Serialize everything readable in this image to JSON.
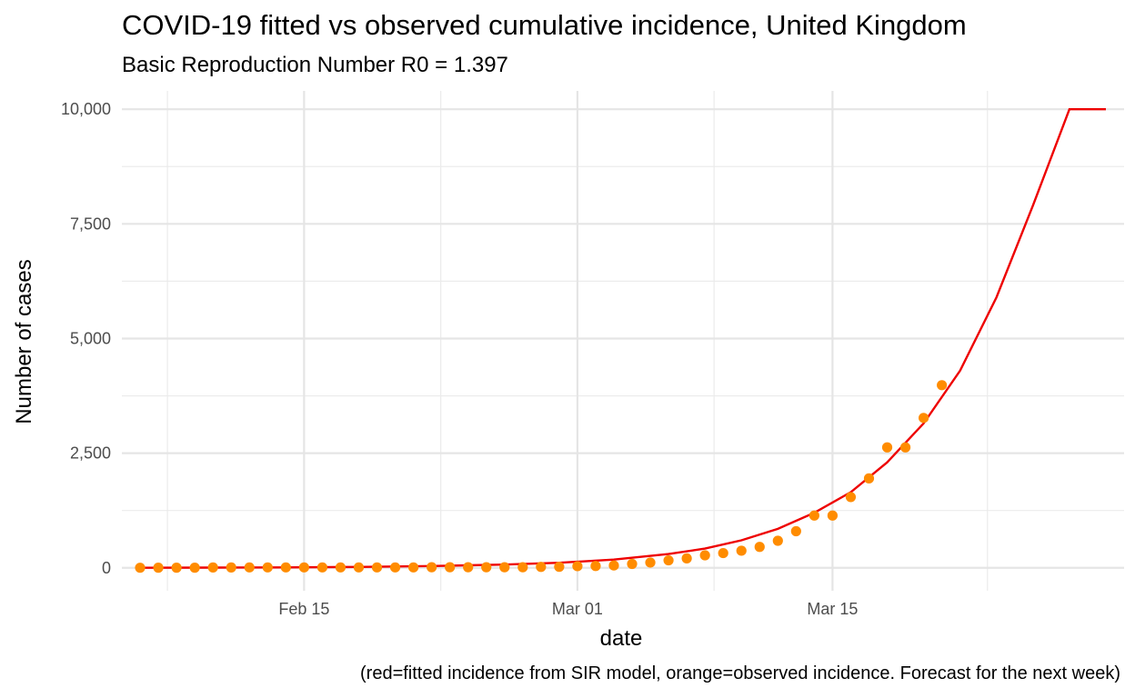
{
  "chart_data": {
    "type": "line",
    "title": "COVID-19 fitted vs observed cumulative incidence, United Kingdom",
    "subtitle": "Basic Reproduction Number R0 = 1.397",
    "xlabel": "date",
    "ylabel": "Number of cases",
    "caption": "(red=fitted incidence from SIR model, orange=observed incidence. Forecast for the next week)",
    "x_tick_labels": [
      "Feb 15",
      "Mar 01",
      "Mar 15"
    ],
    "x_tick_dates": [
      "2020-02-15",
      "2020-03-01",
      "2020-03-15"
    ],
    "y_tick_labels": [
      "0",
      "2,500",
      "5,000",
      "7,500",
      "10,000"
    ],
    "y_tick_values": [
      0,
      2500,
      5000,
      7500,
      10000
    ],
    "xlim": [
      "2020-02-05",
      "2020-03-31"
    ],
    "ylim": [
      -500,
      10400
    ],
    "grid": true,
    "series": [
      {
        "kind": "line",
        "color": "#ee0000",
        "x": [
          "2020-02-06",
          "2020-02-10",
          "2020-02-14",
          "2020-02-18",
          "2020-02-22",
          "2020-02-26",
          "2020-02-29",
          "2020-03-03",
          "2020-03-06",
          "2020-03-08",
          "2020-03-10",
          "2020-03-12",
          "2020-03-14",
          "2020-03-16",
          "2020-03-18",
          "2020-03-20",
          "2020-03-22",
          "2020-03-24",
          "2020-03-26",
          "2020-03-28",
          "2020-03-30"
        ],
        "values": [
          2,
          5,
          10,
          20,
          40,
          70,
          110,
          180,
          300,
          420,
          600,
          850,
          1200,
          1650,
          2300,
          3150,
          4300,
          5900,
          7900,
          10000,
          10000
        ]
      },
      {
        "kind": "points",
        "color": "#ff8c00",
        "x": [
          "2020-02-06",
          "2020-02-07",
          "2020-02-08",
          "2020-02-09",
          "2020-02-10",
          "2020-02-11",
          "2020-02-12",
          "2020-02-13",
          "2020-02-14",
          "2020-02-15",
          "2020-02-16",
          "2020-02-17",
          "2020-02-18",
          "2020-02-19",
          "2020-02-20",
          "2020-02-21",
          "2020-02-22",
          "2020-02-23",
          "2020-02-24",
          "2020-02-25",
          "2020-02-26",
          "2020-02-27",
          "2020-02-28",
          "2020-02-29",
          "2020-03-01",
          "2020-03-02",
          "2020-03-03",
          "2020-03-04",
          "2020-03-05",
          "2020-03-06",
          "2020-03-07",
          "2020-03-08",
          "2020-03-09",
          "2020-03-10",
          "2020-03-11",
          "2020-03-12",
          "2020-03-13",
          "2020-03-14",
          "2020-03-15",
          "2020-03-16",
          "2020-03-17",
          "2020-03-18",
          "2020-03-19",
          "2020-03-20",
          "2020-03-21"
        ],
        "values": [
          2,
          3,
          3,
          3,
          8,
          8,
          9,
          9,
          9,
          9,
          9,
          9,
          9,
          9,
          9,
          9,
          13,
          13,
          13,
          13,
          13,
          13,
          20,
          23,
          36,
          40,
          51,
          85,
          115,
          163,
          206,
          273,
          321,
          373,
          456,
          590,
          798,
          1140,
          1140,
          1543,
          1950,
          2626,
          2626,
          3269,
          3983
        ]
      }
    ]
  }
}
